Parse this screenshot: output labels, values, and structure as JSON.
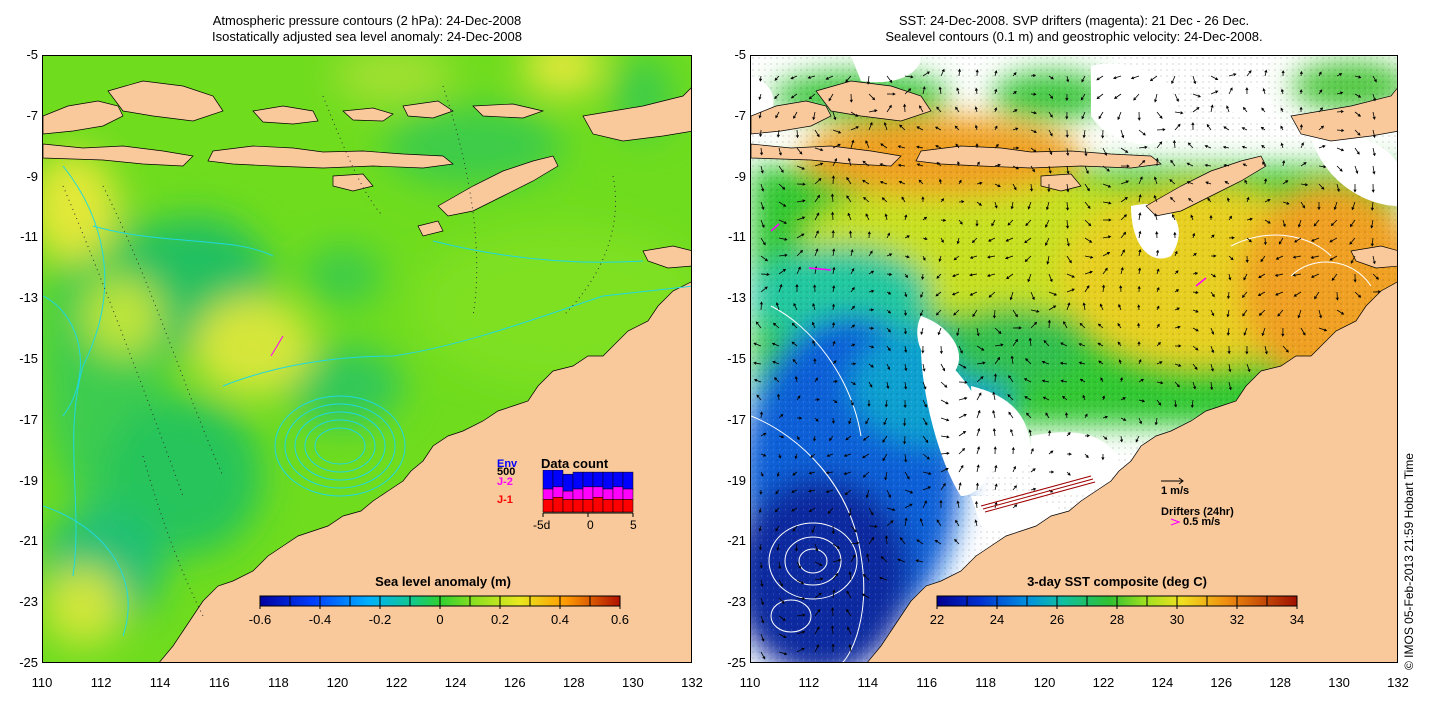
{
  "left_panel": {
    "title_line1": "Atmospheric pressure contours (2 hPa): 24-Dec-2008",
    "title_line2": "Isostatically adjusted sea level anomaly: 24-Dec-2008",
    "colorbar_title": "Sea level anomaly (m)",
    "colorbar_ticks": [
      "-0.6",
      "-0.4",
      "-0.2",
      "0",
      "0.2",
      "0.4",
      "0.6"
    ],
    "inset": {
      "title": "Data count",
      "series_labels": [
        {
          "label": "Env",
          "color": "#0000ff"
        },
        {
          "label": "J-2",
          "color": "#ff00ff"
        },
        {
          "label": "J-1",
          "color": "#ff0000"
        }
      ],
      "count_label": "500",
      "x_ticks": [
        "-5d",
        "0",
        "5"
      ],
      "bars": [
        {
          "j1": 0.3,
          "j2": 0.25,
          "env": 0.45
        },
        {
          "j1": 0.35,
          "j2": 0.25,
          "env": 0.4
        },
        {
          "j1": 0.3,
          "j2": 0.2,
          "env": 0.4
        },
        {
          "j1": 0.3,
          "j2": 0.25,
          "env": 0.4
        },
        {
          "j1": 0.3,
          "j2": 0.3,
          "env": 0.35
        },
        {
          "j1": 0.35,
          "j2": 0.25,
          "env": 0.35
        },
        {
          "j1": 0.3,
          "j2": 0.25,
          "env": 0.4
        },
        {
          "j1": 0.3,
          "j2": 0.3,
          "env": 0.35
        },
        {
          "j1": 0.3,
          "j2": 0.25,
          "env": 0.4
        }
      ]
    }
  },
  "right_panel": {
    "title_line1": "SST: 24-Dec-2008. SVP drifters (magenta): 21 Dec - 26 Dec.",
    "title_line2": "Sealevel contours (0.1 m) and geostrophic velocity: 24-Dec-2008.",
    "colorbar_title": "3-day SST composite (deg C)",
    "colorbar_ticks": [
      "22",
      "24",
      "26",
      "28",
      "30",
      "32",
      "34"
    ],
    "velocity_scale_label": "1 m/s",
    "drifters_label": "Drifters (24hr)",
    "drifter_speed_label": "0.5 m/s"
  },
  "axes": {
    "y_ticks": [
      "-5",
      "-7",
      "-9",
      "-11",
      "-13",
      "-15",
      "-17",
      "-19",
      "-21",
      "-23",
      "-25"
    ],
    "x_ticks": [
      "110",
      "112",
      "114",
      "116",
      "118",
      "120",
      "122",
      "124",
      "126",
      "128",
      "130",
      "132"
    ]
  },
  "credit": "© IMOS 05-Feb-2013 21:59 Hobart Time",
  "colors": {
    "land": "#f9c89b",
    "contour_cyan": "#22d8dd",
    "drifter_magenta": "#ff00ff",
    "series_env": "#0000ff",
    "series_j2": "#ff00ff",
    "series_j1": "#ff0000"
  }
}
